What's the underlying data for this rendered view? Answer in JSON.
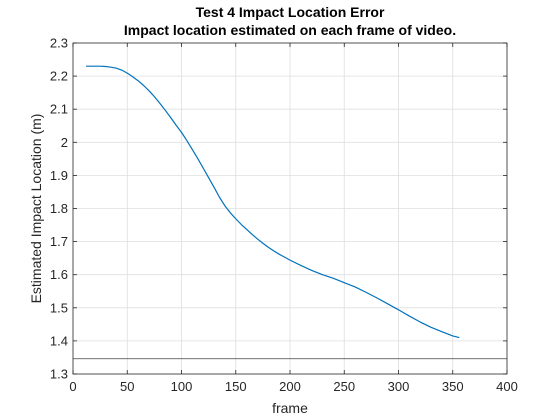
{
  "chart_data": {
    "type": "line",
    "title": "Test 4 Impact Location Error",
    "subtitle": "Impact location estimated on each frame of video.",
    "xlabel": "frame",
    "ylabel": "Estimated Impact Location (m)",
    "xlim": [
      0,
      400
    ],
    "ylim": [
      1.3,
      2.3
    ],
    "xticks": [
      0,
      50,
      100,
      150,
      200,
      250,
      300,
      350,
      400
    ],
    "yticks": [
      1.3,
      1.4,
      1.5,
      1.6,
      1.7,
      1.8,
      1.9,
      2,
      2.1,
      2.2,
      2.3
    ],
    "grid": true,
    "box": true,
    "series": [
      {
        "color": "#0072BD",
        "x": [
          12,
          20,
          25,
          30,
          35,
          40,
          45,
          50,
          55,
          60,
          65,
          70,
          75,
          80,
          85,
          90,
          95,
          100,
          105,
          110,
          115,
          120,
          125,
          130,
          135,
          140,
          145,
          150,
          155,
          160,
          165,
          170,
          175,
          180,
          185,
          190,
          195,
          200,
          210,
          220,
          230,
          240,
          250,
          260,
          270,
          280,
          290,
          300,
          310,
          320,
          330,
          340,
          350,
          356
        ],
        "y": [
          2.23,
          2.23,
          2.23,
          2.229,
          2.227,
          2.224,
          2.218,
          2.209,
          2.198,
          2.186,
          2.172,
          2.156,
          2.138,
          2.118,
          2.097,
          2.075,
          2.052,
          2.03,
          2.005,
          1.978,
          1.951,
          1.922,
          1.893,
          1.864,
          1.834,
          1.808,
          1.787,
          1.769,
          1.752,
          1.737,
          1.722,
          1.708,
          1.695,
          1.683,
          1.672,
          1.662,
          1.653,
          1.644,
          1.628,
          1.613,
          1.6,
          1.589,
          1.576,
          1.563,
          1.547,
          1.53,
          1.512,
          1.494,
          1.475,
          1.457,
          1.441,
          1.428,
          1.415,
          1.41
        ]
      },
      {
        "color": "#404040",
        "x": [
          0,
          400
        ],
        "y": [
          1.346,
          1.346
        ]
      }
    ]
  }
}
